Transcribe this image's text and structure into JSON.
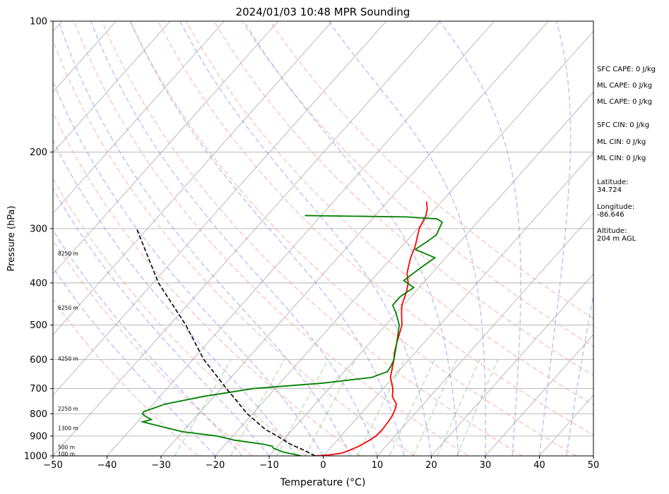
{
  "chart_data": {
    "type": "line",
    "subtype": "skew-t",
    "title": "2024/01/03 10:48 MPR Sounding",
    "xlabel": "Temperature (°C)",
    "ylabel": "Pressure (hPa)",
    "xlim": [
      -50,
      50
    ],
    "ylim": [
      1000,
      100
    ],
    "y_scale": "log",
    "x_ticks": [
      "−50",
      "−40",
      "−30",
      "−20",
      "−10",
      "0",
      "10",
      "20",
      "30",
      "40",
      "50"
    ],
    "y_ticks": [
      "100",
      "200",
      "300",
      "400",
      "500",
      "600",
      "700",
      "800",
      "900",
      "1000"
    ],
    "y_tick_values": [
      100,
      200,
      300,
      400,
      500,
      600,
      700,
      800,
      900,
      1000
    ],
    "grid": true,
    "series": [
      {
        "kind": "temperature",
        "color": "#ff0000",
        "points": [
          [
            1000,
            -1.5
          ],
          [
            995,
            1
          ],
          [
            985,
            3
          ],
          [
            970,
            4
          ],
          [
            950,
            5
          ],
          [
            920,
            6
          ],
          [
            900,
            6.5
          ],
          [
            870,
            6.6
          ],
          [
            850,
            6.5
          ],
          [
            820,
            6.3
          ],
          [
            800,
            6
          ],
          [
            780,
            5.6
          ],
          [
            760,
            5
          ],
          [
            730,
            3
          ],
          [
            700,
            1.8
          ],
          [
            660,
            -0.5
          ],
          [
            600,
            -2.8
          ],
          [
            580,
            -3.8
          ],
          [
            550,
            -5
          ],
          [
            500,
            -7
          ],
          [
            470,
            -9
          ],
          [
            450,
            -10.3
          ],
          [
            420,
            -11.6
          ],
          [
            400,
            -12.8
          ],
          [
            380,
            -14.6
          ],
          [
            350,
            -16.5
          ],
          [
            330,
            -17.5
          ],
          [
            300,
            -19.7
          ],
          [
            280,
            -20.6
          ],
          [
            270,
            -21.5
          ],
          [
            260,
            -22.8
          ]
        ]
      },
      {
        "kind": "dewpoint",
        "color": "#008000",
        "points": [
          [
            1000,
            -4
          ],
          [
            980,
            -8
          ],
          [
            960,
            -10.5
          ],
          [
            950,
            -11
          ],
          [
            940,
            -13
          ],
          [
            920,
            -19
          ],
          [
            900,
            -23
          ],
          [
            880,
            -30
          ],
          [
            860,
            -34
          ],
          [
            845,
            -37
          ],
          [
            835,
            -39
          ],
          [
            825,
            -37.8
          ],
          [
            810,
            -39.5
          ],
          [
            800,
            -40.4
          ],
          [
            790,
            -40.5
          ],
          [
            780,
            -39.5
          ],
          [
            760,
            -37.8
          ],
          [
            730,
            -32
          ],
          [
            700,
            -24
          ],
          [
            680,
            -12
          ],
          [
            660,
            -4
          ],
          [
            640,
            -2
          ],
          [
            620,
            -2.3
          ],
          [
            600,
            -2.8
          ],
          [
            550,
            -5
          ],
          [
            500,
            -7.5
          ],
          [
            470,
            -10
          ],
          [
            450,
            -12
          ],
          [
            430,
            -12
          ],
          [
            410,
            -11
          ],
          [
            395,
            -14
          ],
          [
            370,
            -13
          ],
          [
            350,
            -12
          ],
          [
            335,
            -17
          ],
          [
            320,
            -16
          ],
          [
            310,
            -15.5
          ],
          [
            300,
            -16
          ],
          [
            290,
            -16.5
          ],
          [
            285,
            -18
          ],
          [
            282,
            -24
          ],
          [
            280,
            -43
          ]
        ]
      },
      {
        "kind": "parcel",
        "color": "#000000",
        "style": "dashed",
        "points": [
          [
            1000,
            -1.5
          ],
          [
            970,
            -4.5
          ],
          [
            940,
            -8
          ],
          [
            900,
            -11.8
          ],
          [
            870,
            -15
          ],
          [
            800,
            -21
          ],
          [
            700,
            -29
          ],
          [
            600,
            -38
          ],
          [
            500,
            -47
          ],
          [
            400,
            -59
          ],
          [
            300,
            -72
          ]
        ]
      }
    ],
    "reference_lines": {
      "isotherms": {
        "color": "#aaaaaa",
        "values": [
          -130,
          -120,
          -110,
          -100,
          -90,
          -80,
          -70,
          -60,
          -50,
          -40,
          -30,
          -20,
          -10,
          0,
          10,
          20,
          30,
          40,
          50
        ]
      },
      "dry_adiabats": {
        "color": "#ff9999",
        "theta_k": [
          250,
          260,
          270,
          280,
          290,
          300,
          310,
          320,
          330,
          340,
          350,
          360,
          370
        ]
      },
      "moist_adiabats": {
        "color": "#8888ff",
        "start_temp_c": [
          -20,
          -15,
          -10,
          -5,
          0,
          5,
          10,
          15,
          20,
          25,
          30,
          35,
          40,
          45
        ]
      },
      "mixing_ratio": {
        "color": "#66bb66",
        "g_per_kg": [
          0.4,
          1,
          2,
          3,
          6,
          9,
          12,
          16,
          20
        ],
        "top_hpa": 600
      }
    },
    "height_labels": [
      {
        "p": 988,
        "text": "100 m"
      },
      {
        "p": 955,
        "text": "500 m"
      },
      {
        "p": 862,
        "text": "1300 m"
      },
      {
        "p": 779,
        "text": "2250 m"
      },
      {
        "p": 597,
        "text": "4250 m"
      },
      {
        "p": 456,
        "text": "6250 m"
      },
      {
        "p": 342,
        "text": "8250 m"
      }
    ],
    "annotations": [
      "SFC CAPE: 0 J/kg",
      "ML CAPE: 0 J/kg",
      "ML CAPE: 0 J/kg",
      "SFC CIN: 0 J/kg",
      "ML CIN: 0 J/kg",
      "ML CIN: 0 J/kg",
      "Latitude:\n34.724",
      "Longitude:\n-86.646",
      "Altitude:\n204 m AGL"
    ]
  }
}
